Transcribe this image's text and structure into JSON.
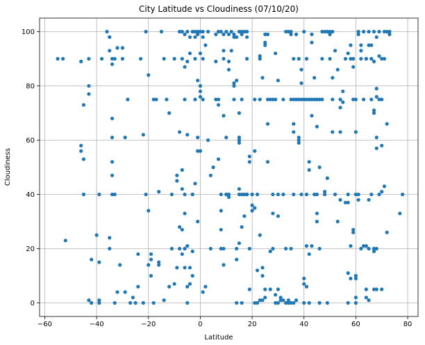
{
  "chart_data": {
    "type": "scatter",
    "title": "City Latitude vs Cloudiness (07/10/20)",
    "xlabel": "Latitude",
    "ylabel": "Cloudiness",
    "xlim": [
      -62,
      84
    ],
    "ylim": [
      -5,
      105
    ],
    "xticks": [
      -60,
      -40,
      -20,
      0,
      20,
      40,
      60,
      80
    ],
    "yticks": [
      0,
      20,
      40,
      60,
      80,
      100
    ],
    "grid": true,
    "marker_color": "#1f77b4",
    "points": [
      [
        -55,
        90
      ],
      [
        -53,
        90
      ],
      [
        -52,
        23
      ],
      [
        -46,
        89
      ],
      [
        -46,
        58
      ],
      [
        -46,
        56
      ],
      [
        -45,
        73
      ],
      [
        -45,
        53
      ],
      [
        -45,
        40
      ],
      [
        -43,
        1
      ],
      [
        -43,
        90
      ],
      [
        -43,
        80
      ],
      [
        -43,
        77
      ],
      [
        -42,
        16
      ],
      [
        -42,
        0
      ],
      [
        -40,
        25
      ],
      [
        -39,
        0
      ],
      [
        -39,
        1
      ],
      [
        -39,
        40
      ],
      [
        -39,
        15
      ],
      [
        -38,
        90
      ],
      [
        -36,
        100
      ],
      [
        -35,
        98
      ],
      [
        -35,
        93
      ],
      [
        -35,
        98
      ],
      [
        -35,
        20
      ],
      [
        -35,
        24
      ],
      [
        -34,
        68
      ],
      [
        -34,
        61
      ],
      [
        -34,
        52
      ],
      [
        -34,
        47
      ],
      [
        -34,
        40
      ],
      [
        -34,
        88
      ],
      [
        -34,
        90
      ],
      [
        -33,
        40
      ],
      [
        -33,
        0
      ],
      [
        -33,
        90
      ],
      [
        -32,
        94
      ],
      [
        -32,
        4
      ],
      [
        -31,
        14
      ],
      [
        -30,
        90
      ],
      [
        -30,
        94
      ],
      [
        -29,
        61
      ],
      [
        -29,
        4
      ],
      [
        -28,
        75
      ],
      [
        -27,
        0
      ],
      [
        -26,
        2
      ],
      [
        -25,
        0
      ],
      [
        -24,
        6
      ],
      [
        -24,
        18
      ],
      [
        -23,
        90
      ],
      [
        -22,
        0
      ],
      [
        -22,
        62
      ],
      [
        -21,
        100
      ],
      [
        -21,
        40
      ],
      [
        -20,
        34
      ],
      [
        -20,
        84
      ],
      [
        -20,
        14
      ],
      [
        -19,
        18
      ],
      [
        -19,
        10
      ],
      [
        -19,
        16
      ],
      [
        -18,
        75
      ],
      [
        -18,
        0
      ],
      [
        -17,
        75
      ],
      [
        -16,
        15
      ],
      [
        -16,
        14
      ],
      [
        -16,
        41
      ],
      [
        -15,
        100
      ],
      [
        -14,
        1
      ],
      [
        -14,
        90
      ],
      [
        -13,
        75
      ],
      [
        -12,
        6
      ],
      [
        -12,
        70
      ],
      [
        -11,
        20
      ],
      [
        -11,
        40
      ],
      [
        -10,
        90
      ],
      [
        -10,
        7
      ],
      [
        -9,
        45
      ],
      [
        -9,
        13
      ],
      [
        -9,
        47
      ],
      [
        -8,
        100
      ],
      [
        -8,
        28
      ],
      [
        -8,
        20
      ],
      [
        -8,
        63
      ],
      [
        -7,
        42
      ],
      [
        -7,
        18
      ],
      [
        -7,
        27
      ],
      [
        -7,
        49
      ],
      [
        -7,
        100
      ],
      [
        -7,
        90
      ],
      [
        -6,
        87
      ],
      [
        -6,
        99
      ],
      [
        -6,
        75
      ],
      [
        -6,
        40
      ],
      [
        -6,
        13
      ],
      [
        -6,
        33
      ],
      [
        -6,
        20
      ],
      [
        -5,
        100
      ],
      [
        -5,
        62
      ],
      [
        -5,
        89
      ],
      [
        -5,
        21
      ],
      [
        -5,
        6
      ],
      [
        -5,
        0
      ],
      [
        -4,
        92
      ],
      [
        -4,
        98
      ],
      [
        -4,
        7
      ],
      [
        -4,
        13
      ],
      [
        -3,
        19
      ],
      [
        -3,
        10
      ],
      [
        -3,
        40
      ],
      [
        -3,
        100
      ],
      [
        -3,
        40
      ],
      [
        -2,
        98
      ],
      [
        -2,
        100
      ],
      [
        -2,
        90
      ],
      [
        -2,
        75
      ],
      [
        -2,
        44
      ],
      [
        -1,
        100
      ],
      [
        -1,
        99
      ],
      [
        -1,
        82
      ],
      [
        -1,
        56
      ],
      [
        -1,
        61
      ],
      [
        -1,
        30
      ],
      [
        0,
        80
      ],
      [
        0,
        78
      ],
      [
        0,
        76
      ],
      [
        0,
        56
      ],
      [
        0,
        92
      ],
      [
        0,
        100
      ],
      [
        1,
        98
      ],
      [
        1,
        90
      ],
      [
        1,
        75
      ],
      [
        1,
        4
      ],
      [
        1,
        100
      ],
      [
        2,
        95
      ],
      [
        2,
        6
      ],
      [
        3,
        60
      ],
      [
        3,
        100
      ],
      [
        4,
        47
      ],
      [
        4,
        20
      ],
      [
        5,
        50
      ],
      [
        6,
        89
      ],
      [
        6,
        75
      ],
      [
        6,
        99
      ],
      [
        7,
        73
      ],
      [
        7,
        75
      ],
      [
        7,
        100
      ],
      [
        7,
        53
      ],
      [
        8,
        20
      ],
      [
        8,
        34
      ],
      [
        8,
        27
      ],
      [
        8,
        40
      ],
      [
        8,
        100
      ],
      [
        9,
        93
      ],
      [
        9,
        90
      ],
      [
        9,
        69
      ],
      [
        9,
        99
      ],
      [
        9,
        14
      ],
      [
        9,
        20
      ],
      [
        10,
        40
      ],
      [
        10,
        61
      ],
      [
        10,
        100
      ],
      [
        10,
        40
      ],
      [
        11,
        89
      ],
      [
        11,
        86
      ],
      [
        11,
        99
      ],
      [
        11,
        39
      ],
      [
        11,
        40
      ],
      [
        12,
        93
      ],
      [
        12,
        100
      ],
      [
        13,
        81
      ],
      [
        13,
        80
      ],
      [
        13,
        98
      ],
      [
        13,
        99
      ],
      [
        13,
        75
      ],
      [
        14,
        82
      ],
      [
        14,
        16
      ],
      [
        14,
        0
      ],
      [
        14,
        20
      ],
      [
        14,
        98
      ],
      [
        15,
        100
      ],
      [
        15,
        100
      ],
      [
        15,
        70
      ],
      [
        15,
        60
      ],
      [
        15,
        59
      ],
      [
        15,
        61
      ],
      [
        15,
        40
      ],
      [
        15,
        22
      ],
      [
        15,
        42
      ],
      [
        16,
        28
      ],
      [
        16,
        75
      ],
      [
        16,
        100
      ],
      [
        16,
        99
      ],
      [
        16,
        40
      ],
      [
        16,
        0
      ],
      [
        17,
        100
      ],
      [
        17,
        40
      ],
      [
        17,
        32
      ],
      [
        18,
        100
      ],
      [
        18,
        90
      ],
      [
        18,
        98
      ],
      [
        18,
        40
      ],
      [
        18,
        40
      ],
      [
        19,
        20
      ],
      [
        19,
        52
      ],
      [
        19,
        54
      ],
      [
        19,
        5
      ],
      [
        20,
        40
      ],
      [
        20,
        40
      ],
      [
        20,
        36
      ],
      [
        20,
        34
      ],
      [
        21,
        0
      ],
      [
        21,
        75
      ],
      [
        21,
        35
      ],
      [
        21,
        56
      ],
      [
        22,
        40
      ],
      [
        22,
        12
      ],
      [
        22,
        0
      ],
      [
        23,
        90
      ],
      [
        23,
        25
      ],
      [
        23,
        75
      ],
      [
        23,
        91
      ],
      [
        23,
        1
      ],
      [
        24,
        1
      ],
      [
        24,
        83
      ],
      [
        24,
        10
      ],
      [
        24,
        13
      ],
      [
        25,
        99
      ],
      [
        25,
        96
      ],
      [
        25,
        95
      ],
      [
        25,
        5
      ],
      [
        25,
        2
      ],
      [
        26,
        99
      ],
      [
        26,
        52
      ],
      [
        26,
        66
      ],
      [
        26,
        75
      ],
      [
        27,
        5
      ],
      [
        27,
        75
      ],
      [
        27,
        19
      ],
      [
        28,
        75
      ],
      [
        28,
        20
      ],
      [
        28,
        40
      ],
      [
        28,
        33
      ],
      [
        29,
        92
      ],
      [
        29,
        75
      ],
      [
        29,
        0
      ],
      [
        29,
        3
      ],
      [
        30,
        40
      ],
      [
        30,
        32
      ],
      [
        30,
        82
      ],
      [
        30,
        5
      ],
      [
        30,
        0
      ],
      [
        31,
        1
      ],
      [
        31,
        2
      ],
      [
        32,
        40
      ],
      [
        32,
        75
      ],
      [
        32,
        1
      ],
      [
        33,
        0
      ],
      [
        33,
        100
      ],
      [
        33,
        20
      ],
      [
        34,
        100
      ],
      [
        34,
        0
      ],
      [
        34,
        1
      ],
      [
        35,
        100
      ],
      [
        35,
        99
      ],
      [
        35,
        20
      ],
      [
        35,
        75
      ],
      [
        35,
        0
      ],
      [
        36,
        75
      ],
      [
        36,
        40
      ],
      [
        36,
        66
      ],
      [
        36,
        63
      ],
      [
        36,
        90
      ],
      [
        36,
        0
      ],
      [
        37,
        75
      ],
      [
        37,
        99
      ],
      [
        37,
        1
      ],
      [
        38,
        75
      ],
      [
        38,
        90
      ],
      [
        38,
        60
      ],
      [
        38,
        61
      ],
      [
        38,
        59
      ],
      [
        39,
        86
      ],
      [
        39,
        75
      ],
      [
        39,
        81
      ],
      [
        39,
        40
      ],
      [
        40,
        9
      ],
      [
        40,
        7
      ],
      [
        40,
        100
      ],
      [
        40,
        75
      ],
      [
        40,
        0
      ],
      [
        41,
        21
      ],
      [
        41,
        6
      ],
      [
        41,
        90
      ],
      [
        41,
        40
      ],
      [
        41,
        75
      ],
      [
        42,
        75
      ],
      [
        42,
        52
      ],
      [
        42,
        49
      ],
      [
        42,
        18
      ],
      [
        42,
        0
      ],
      [
        43,
        96
      ],
      [
        43,
        99
      ],
      [
        43,
        75
      ],
      [
        43,
        69
      ],
      [
        43,
        21
      ],
      [
        44,
        83
      ],
      [
        44,
        75
      ],
      [
        44,
        40
      ],
      [
        45,
        75
      ],
      [
        45,
        65
      ],
      [
        45,
        40
      ],
      [
        45,
        33
      ],
      [
        45,
        30
      ],
      [
        46,
        50
      ],
      [
        46,
        75
      ],
      [
        46,
        20
      ],
      [
        46,
        0
      ],
      [
        47,
        90
      ],
      [
        47,
        100
      ],
      [
        47,
        75
      ],
      [
        48,
        100
      ],
      [
        48,
        41
      ],
      [
        48,
        40
      ],
      [
        49,
        46
      ],
      [
        49,
        100
      ],
      [
        49,
        0
      ],
      [
        50,
        90
      ],
      [
        50,
        99
      ],
      [
        50,
        100
      ],
      [
        51,
        75
      ],
      [
        51,
        63
      ],
      [
        51,
        100
      ],
      [
        51,
        83
      ],
      [
        52,
        40
      ],
      [
        52,
        93
      ],
      [
        53,
        86
      ],
      [
        53,
        30
      ],
      [
        54,
        72
      ],
      [
        54,
        75
      ],
      [
        54,
        63
      ],
      [
        54,
        38
      ],
      [
        55,
        78
      ],
      [
        55,
        74
      ],
      [
        56,
        90
      ],
      [
        56,
        37
      ],
      [
        57,
        40
      ],
      [
        57,
        92
      ],
      [
        57,
        37
      ],
      [
        57,
        11
      ],
      [
        57,
        0
      ],
      [
        58,
        90
      ],
      [
        58,
        95
      ],
      [
        58,
        21
      ],
      [
        58,
        9
      ],
      [
        59,
        75
      ],
      [
        59,
        90
      ],
      [
        59,
        87
      ],
      [
        59,
        27
      ],
      [
        59,
        26
      ],
      [
        60,
        40
      ],
      [
        60,
        0
      ],
      [
        60,
        9
      ],
      [
        60,
        10
      ],
      [
        60,
        75
      ],
      [
        60,
        2
      ],
      [
        60,
        63
      ],
      [
        61,
        100
      ],
      [
        61,
        99
      ],
      [
        61,
        40
      ],
      [
        61,
        38
      ],
      [
        62,
        95
      ],
      [
        62,
        93
      ],
      [
        62,
        20
      ],
      [
        62,
        90
      ],
      [
        63,
        21
      ],
      [
        63,
        75
      ],
      [
        63,
        100
      ],
      [
        64,
        90
      ],
      [
        64,
        2
      ],
      [
        64,
        90
      ],
      [
        64,
        21
      ],
      [
        64,
        5
      ],
      [
        65,
        100
      ],
      [
        65,
        95
      ],
      [
        65,
        20
      ],
      [
        65,
        1
      ],
      [
        65,
        38
      ],
      [
        66,
        90
      ],
      [
        66,
        95
      ],
      [
        66,
        40
      ],
      [
        66,
        90
      ],
      [
        66,
        75
      ],
      [
        67,
        70
      ],
      [
        67,
        89
      ],
      [
        67,
        100
      ],
      [
        67,
        5
      ],
      [
        67,
        20
      ],
      [
        67,
        19
      ],
      [
        67,
        71
      ],
      [
        68,
        79
      ],
      [
        68,
        76
      ],
      [
        68,
        98
      ],
      [
        68,
        57
      ],
      [
        68,
        61
      ],
      [
        68,
        5
      ],
      [
        68,
        20
      ],
      [
        69,
        91
      ],
      [
        69,
        100
      ],
      [
        69,
        75
      ],
      [
        69,
        40
      ],
      [
        70,
        90
      ],
      [
        70,
        75
      ],
      [
        70,
        58
      ],
      [
        70,
        5
      ],
      [
        70,
        41
      ],
      [
        71,
        100
      ],
      [
        71,
        43
      ],
      [
        71,
        90
      ],
      [
        72,
        66
      ],
      [
        72,
        26
      ],
      [
        72,
        100
      ],
      [
        73,
        99
      ],
      [
        73,
        100
      ],
      [
        77,
        33
      ],
      [
        78,
        40
      ]
    ]
  }
}
